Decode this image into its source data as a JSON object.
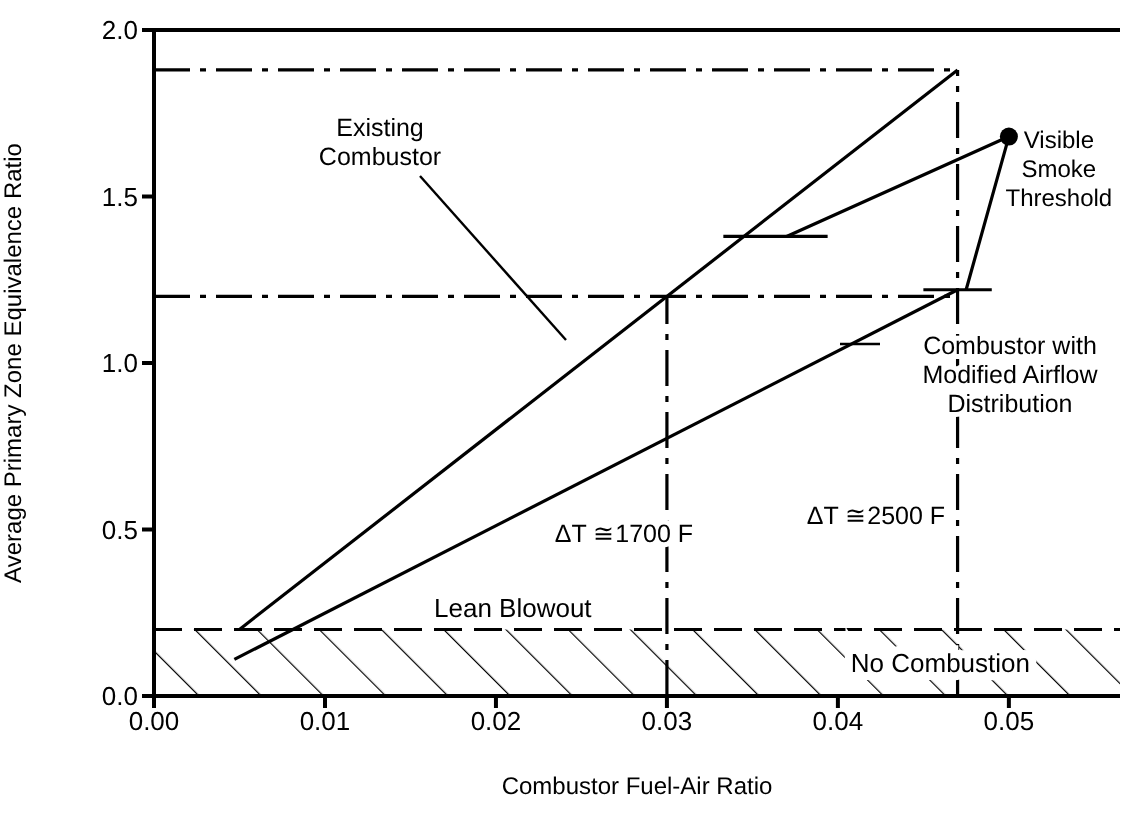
{
  "chart_data": {
    "type": "line",
    "xlabel": "Combustor Fuel-Air Ratio",
    "ylabel": "Average Primary Zone Equivalence Ratio",
    "xlim": [
      0,
      0.0565
    ],
    "ylim": [
      0,
      2.0
    ],
    "xticks": [
      {
        "value": 0,
        "label": "0.00"
      },
      {
        "value": 0.01,
        "label": "0.01"
      },
      {
        "value": 0.02,
        "label": "0.02"
      },
      {
        "value": 0.03,
        "label": "0.03"
      },
      {
        "value": 0.04,
        "label": "0.04"
      },
      {
        "value": 0.05,
        "label": "0.05"
      }
    ],
    "yticks": [
      {
        "value": 0,
        "label": "0.0"
      },
      {
        "value": 0.5,
        "label": "0.5"
      },
      {
        "value": 1.0,
        "label": "1.0"
      },
      {
        "value": 1.5,
        "label": "1.5"
      },
      {
        "value": 2.0,
        "label": "2.0"
      }
    ],
    "marker": "none",
    "line_style": "solid",
    "series": [
      {
        "color": "#000000",
        "x": [
          0.005,
          0.047
        ],
        "values": [
          0.2,
          1.88
        ]
      },
      {
        "color": "#000000",
        "x": [
          0.0047,
          0.047
        ],
        "values": [
          0.11,
          1.22
        ]
      },
      {
        "color": "#000000",
        "x": [
          0.037,
          0.05,
          0.0475
        ],
        "values": [
          1.38,
          1.68,
          1.22
        ]
      },
      {
        "type": "scatter",
        "marker": "circle",
        "color": "#000000",
        "x": [
          0.05
        ],
        "values": [
          1.68
        ]
      },
      {
        "color": "#000000",
        "x": [
          0.0333,
          0.0394
        ],
        "values": [
          1.38,
          1.38
        ]
      },
      {
        "color": "#000000",
        "x": [
          0.045,
          0.049
        ],
        "values": [
          1.22,
          1.22
        ]
      },
      {
        "color": "#000000",
        "line_style": "dashed",
        "x": [
          0,
          0.047
        ],
        "values": [
          1.88,
          1.88
        ]
      },
      {
        "color": "#000000",
        "line_style": "dashed",
        "x": [
          0,
          0.047
        ],
        "values": [
          1.2,
          1.2
        ]
      },
      {
        "color": "#000000",
        "line_style": "dashed",
        "x": [
          0.03,
          0.03
        ],
        "values": [
          0,
          1.2
        ]
      },
      {
        "color": "#000000",
        "line_style": "dashed",
        "x": [
          0.047,
          0.047
        ],
        "values": [
          0,
          1.88
        ]
      }
    ],
    "ref_lines": [
      {
        "axis": "y",
        "value": 0.2,
        "label": "Lean Blowout",
        "line_style": "dashed",
        "color": "#000000"
      }
    ],
    "bands": [
      {
        "axis": "y",
        "from": 0,
        "to": 0.2,
        "label": "No Combustion",
        "color": "#000000"
      }
    ],
    "annotations": [
      "Existing Combustor",
      "Combustor with Modified Airflow Distribution",
      {
        "text": "Visible Smoke Threshold",
        "x": 0.05,
        "y": 1.68
      },
      "ΔT ≅1700 F",
      "ΔT ≅2500 F"
    ]
  }
}
